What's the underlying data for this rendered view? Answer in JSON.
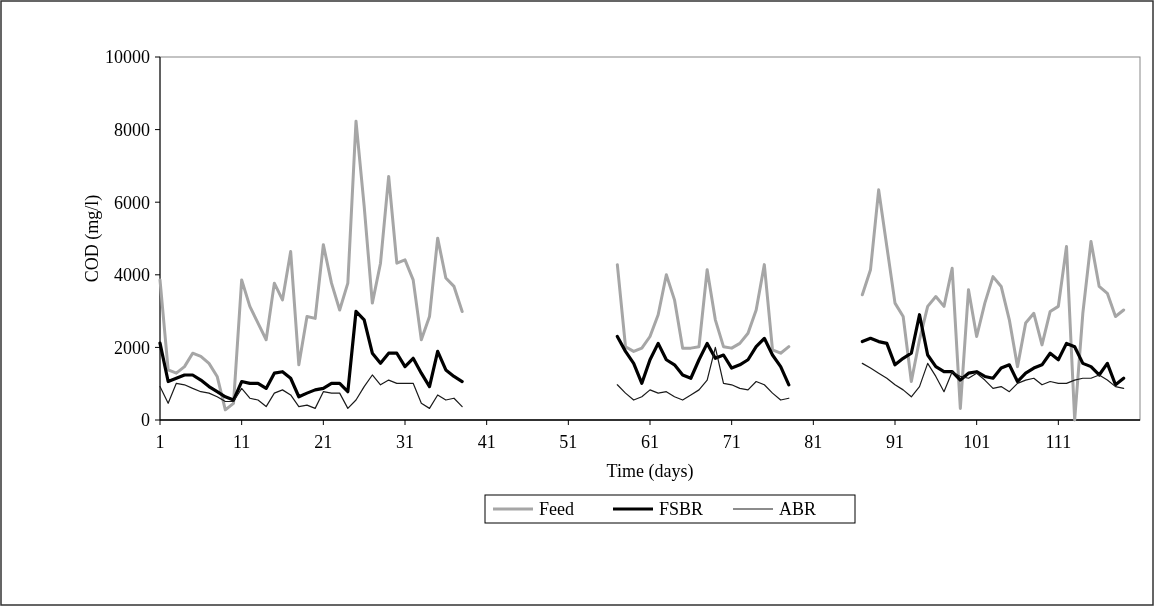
{
  "chart_data": {
    "type": "line",
    "xlabel": "Time (days)",
    "ylabel": "COD (mg/l)",
    "x": [
      1,
      2,
      3,
      4,
      5,
      6,
      7,
      8,
      9,
      10,
      11,
      12,
      13,
      14,
      15,
      16,
      17,
      18,
      19,
      20,
      21,
      22,
      23,
      24,
      25,
      26,
      27,
      28,
      29,
      30,
      31,
      32,
      33,
      34,
      35,
      36,
      37,
      38,
      57,
      58,
      59,
      60,
      61,
      62,
      63,
      64,
      65,
      66,
      67,
      68,
      69,
      70,
      71,
      72,
      73,
      74,
      75,
      76,
      77,
      78,
      87,
      88,
      89,
      90,
      91,
      92,
      93,
      94,
      95,
      96,
      97,
      98,
      99,
      100,
      101,
      102,
      103,
      104,
      105,
      106,
      107,
      108,
      109,
      110,
      111,
      112,
      113,
      114,
      115,
      116,
      117,
      118,
      119
    ],
    "series": [
      {
        "name": "Feed",
        "color": "#a6a6a6",
        "values": [
          3860,
          1380,
          1290,
          1470,
          1840,
          1750,
          1560,
          1200,
          280,
          460,
          3860,
          3130,
          2670,
          2210,
          3770,
          3310,
          4640,
          1520,
          2850,
          2800,
          4830,
          3770,
          3030,
          3770,
          8230,
          5890,
          3220,
          4320,
          6710,
          4320,
          4410,
          3860,
          2210,
          2850,
          5010,
          3910,
          3680,
          2990,
          4280,
          2020,
          1890,
          1980,
          2300,
          2900,
          4000,
          3310,
          1980,
          1980,
          2020,
          4140,
          2760,
          2020,
          1980,
          2110,
          2390,
          3030,
          4280,
          1930,
          1840,
          2020,
          3450,
          4140,
          6340,
          4780,
          3220,
          2850,
          1060,
          2210,
          3130,
          3400,
          3130,
          4180,
          320,
          3590,
          2300,
          3220,
          3950,
          3680,
          2760,
          1470,
          2670,
          2940,
          2070,
          2990,
          3130,
          4780,
          0,
          2940,
          4920,
          3680,
          3490,
          2850,
          3030
        ]
      },
      {
        "name": "FSBR",
        "color": "#000000",
        "values": [
          2120,
          1060,
          1150,
          1240,
          1240,
          1100,
          920,
          780,
          640,
          550,
          1060,
          1010,
          1010,
          870,
          1290,
          1330,
          1150,
          640,
          740,
          830,
          870,
          1010,
          1010,
          780,
          2990,
          2760,
          1840,
          1560,
          1840,
          1840,
          1470,
          1700,
          1290,
          920,
          1890,
          1380,
          1200,
          1060,
          2300,
          1890,
          1560,
          1010,
          1660,
          2110,
          1660,
          1520,
          1240,
          1150,
          1660,
          2110,
          1700,
          1790,
          1430,
          1520,
          1660,
          2020,
          2250,
          1790,
          1470,
          970,
          2160,
          2250,
          2160,
          2110,
          1520,
          1700,
          1840,
          2900,
          1790,
          1470,
          1330,
          1330,
          1100,
          1290,
          1330,
          1200,
          1150,
          1430,
          1520,
          1060,
          1290,
          1430,
          1520,
          1840,
          1660,
          2110,
          2020,
          1560,
          1470,
          1240,
          1560,
          970,
          1150
        ]
      },
      {
        "name": "ABR",
        "color": "#1a1a1a",
        "values": [
          920,
          460,
          1010,
          970,
          870,
          780,
          740,
          640,
          510,
          510,
          870,
          600,
          550,
          370,
          740,
          830,
          690,
          370,
          410,
          320,
          780,
          740,
          740,
          320,
          550,
          920,
          1240,
          970,
          1100,
          1010,
          1010,
          1010,
          460,
          320,
          690,
          550,
          600,
          370,
          970,
          740,
          550,
          640,
          830,
          740,
          780,
          640,
          550,
          690,
          830,
          1100,
          2000,
          1010,
          970,
          870,
          830,
          1060,
          970,
          740,
          550,
          600,
          1560,
          1430,
          1290,
          1150,
          970,
          830,
          640,
          920,
          1560,
          1200,
          780,
          1330,
          1200,
          1150,
          1290,
          1100,
          870,
          920,
          780,
          1010,
          1100,
          1150,
          970,
          1060,
          1010,
          1010,
          1100,
          1150,
          1150,
          1240,
          1100,
          920,
          870
        ]
      }
    ],
    "xlim": [
      1,
      121
    ],
    "xticks": [
      1,
      11,
      21,
      31,
      41,
      51,
      61,
      71,
      81,
      91,
      101,
      111
    ],
    "ylim": [
      0,
      10000
    ],
    "yticks": [
      0,
      2000,
      4000,
      6000,
      8000,
      10000
    ],
    "legend": "bottom",
    "grid": false
  }
}
